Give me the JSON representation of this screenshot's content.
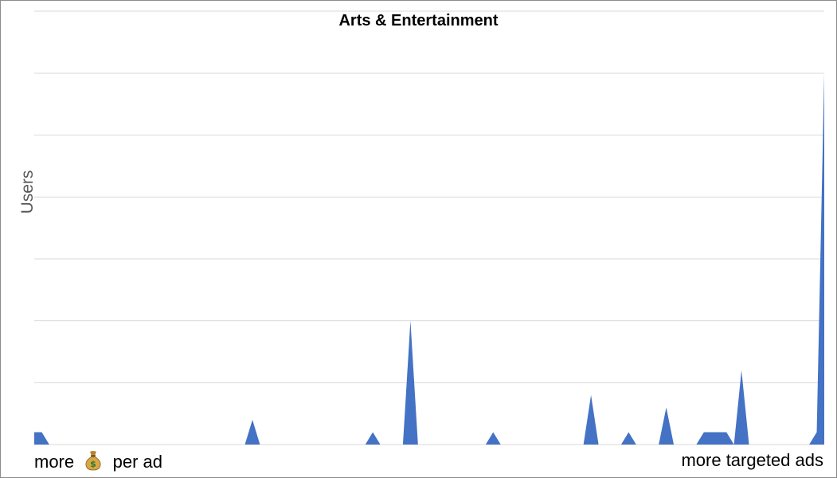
{
  "chart_data": {
    "type": "area",
    "title": "Arts & Entertainment",
    "ylabel": "Users",
    "xlabel_left": {
      "before_icon": "more ",
      "icon": "money-bag-icon",
      "after_icon": " per ad"
    },
    "xlabel_right": "more targeted ads",
    "grid": "horizontal",
    "ylim": [
      0,
      6
    ],
    "y_grid_step": 1,
    "series": [
      {
        "color": "#4472c4",
        "values": [
          0.2,
          0.2,
          0,
          0,
          0,
          0,
          0,
          0,
          0,
          0,
          0,
          0,
          0,
          0,
          0,
          0,
          0,
          0,
          0,
          0,
          0,
          0,
          0,
          0,
          0,
          0,
          0,
          0,
          0,
          0.4,
          0,
          0,
          0,
          0,
          0,
          0,
          0,
          0,
          0,
          0,
          0,
          0,
          0,
          0,
          0,
          0.2,
          0,
          0,
          0,
          0,
          2,
          0,
          0,
          0,
          0,
          0,
          0,
          0,
          0,
          0,
          0,
          0.2,
          0,
          0,
          0,
          0,
          0,
          0,
          0,
          0,
          0,
          0,
          0,
          0,
          0.8,
          0,
          0,
          0,
          0,
          0.2,
          0,
          0,
          0,
          0,
          0.6,
          0,
          0,
          0,
          0,
          0.2,
          0.2,
          0.2,
          0.2,
          0,
          1.2,
          0,
          0,
          0,
          0,
          0,
          0,
          0,
          0,
          0,
          0.2,
          6
        ]
      }
    ]
  }
}
